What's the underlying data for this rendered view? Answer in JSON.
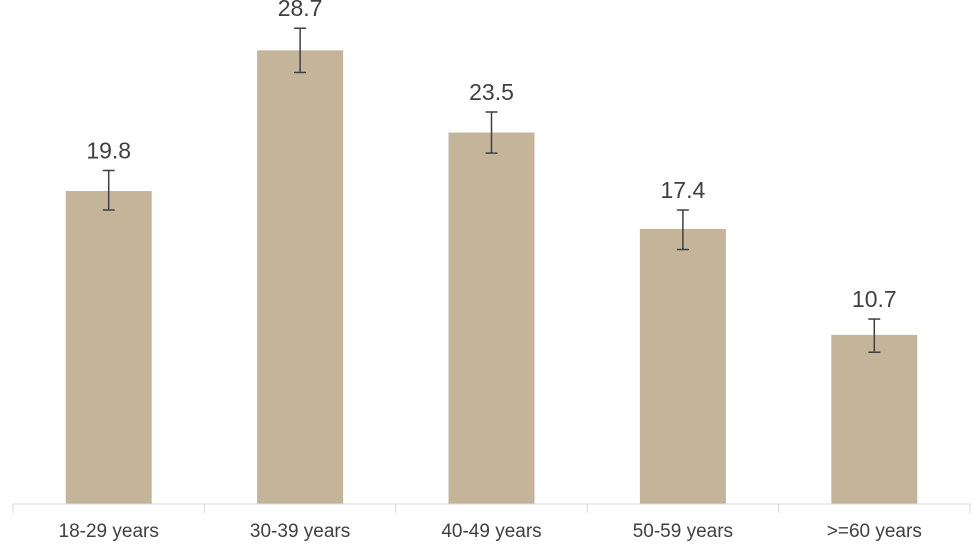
{
  "chart_data": {
    "type": "bar",
    "categories": [
      "18-29 years",
      "30-39 years",
      "40-49 years",
      "50-59 years",
      ">=60 years"
    ],
    "values": [
      19.8,
      28.7,
      23.5,
      17.4,
      10.7
    ],
    "data_labels": [
      "19.8",
      "28.7",
      "23.5",
      "17.4",
      "10.7"
    ],
    "error_bars": [
      {
        "low": 18.6,
        "high": 21.1
      },
      {
        "low": 27.3,
        "high": 30.1
      },
      {
        "low": 22.2,
        "high": 24.8
      },
      {
        "low": 16.1,
        "high": 18.6
      },
      {
        "low": 9.6,
        "high": 11.7
      }
    ],
    "ylim": [
      0,
      31
    ],
    "grid": false,
    "legend": "none",
    "colors": {
      "bar": "#c4b59a",
      "error_bar": "#404040",
      "axis": "#d9d9d9",
      "text": "#404040"
    }
  }
}
